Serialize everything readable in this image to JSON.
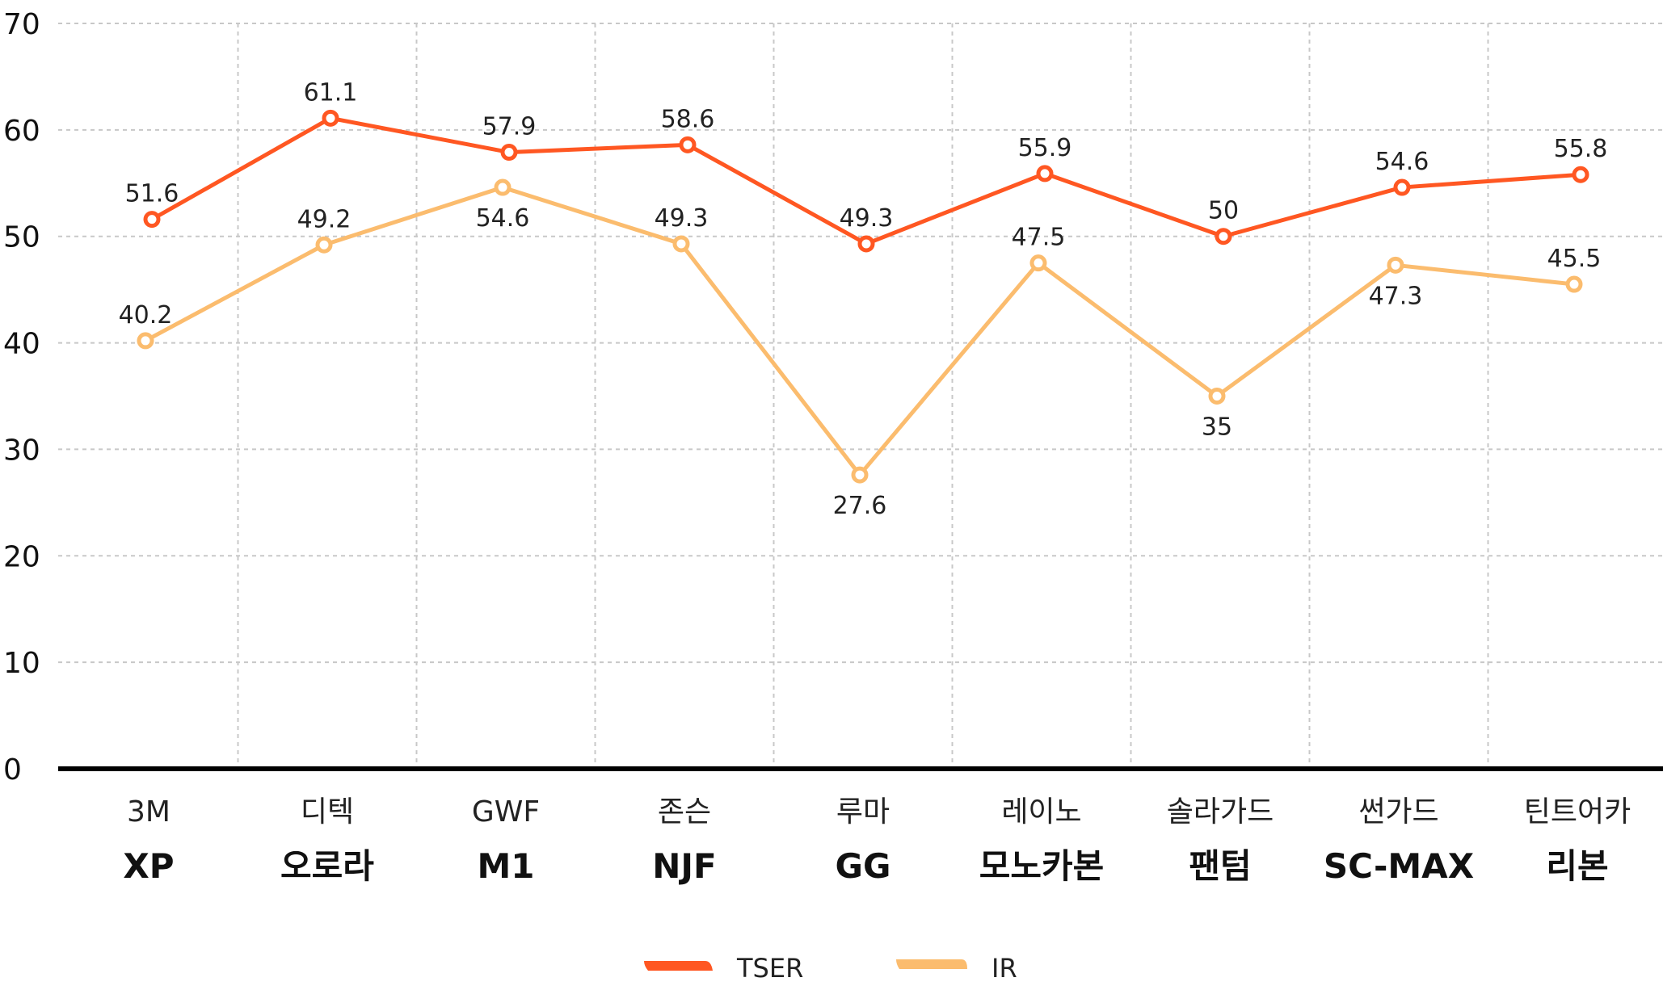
{
  "chart_data": {
    "type": "line",
    "title": "",
    "xlabel": "",
    "ylabel": "",
    "ylim": [
      0,
      70
    ],
    "yticks": [
      "0",
      "10",
      "20",
      "30",
      "40",
      "50",
      "60",
      "70"
    ],
    "grid": true,
    "legend_position": "bottom-center",
    "categories": [
      {
        "brand": "3M",
        "product": "XP"
      },
      {
        "brand": "디텍",
        "product": "오로라"
      },
      {
        "brand": "GWF",
        "product": "M1"
      },
      {
        "brand": "존슨",
        "product": "NJF"
      },
      {
        "brand": "루마",
        "product": "GG"
      },
      {
        "brand": "레이노",
        "product": "모노카본"
      },
      {
        "brand": "솔라가드",
        "product": "팬텀"
      },
      {
        "brand": "썬가드",
        "product": "SC-MAX"
      },
      {
        "brand": "틴트어카",
        "product": "리본"
      }
    ],
    "series": [
      {
        "name": "TSER",
        "color": "#FF5722",
        "values": [
          51.6,
          61.1,
          57.9,
          58.6,
          49.3,
          55.9,
          50,
          54.6,
          55.8
        ],
        "label_pos": [
          "above",
          "above",
          "above",
          "above",
          "above",
          "above",
          "above",
          "above",
          "above"
        ]
      },
      {
        "name": "IR",
        "color": "#FBBC6E",
        "values": [
          40.2,
          49.2,
          54.6,
          49.3,
          27.6,
          47.5,
          35,
          47.3,
          45.5
        ],
        "label_pos": [
          "above",
          "above",
          "below",
          "above",
          "below",
          "above",
          "below",
          "below",
          "above"
        ]
      }
    ]
  }
}
